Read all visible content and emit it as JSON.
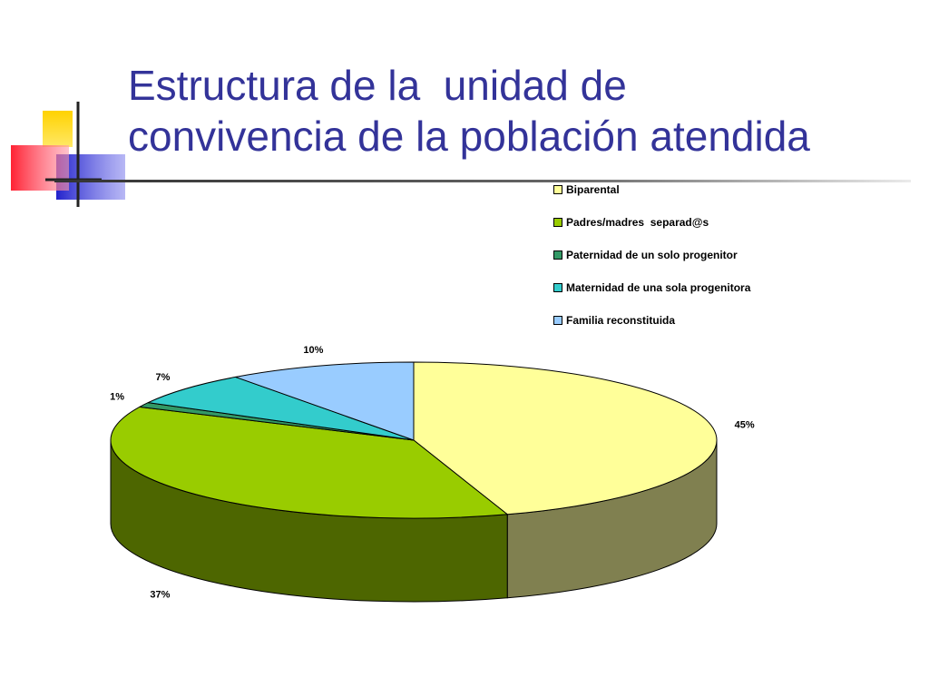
{
  "slide": {
    "title_lines": [
      "Estructura de la  unidad de",
      "convivencia de la población atendida"
    ]
  },
  "chart_data": {
    "type": "pie",
    "title": "Estructura de la  unidad de convivencia de la población atendida",
    "legend_position": "top-right",
    "slices": [
      {
        "label": "Biparental",
        "value": 45,
        "value_label": "45%",
        "color": "#FFFF99",
        "side_color": "#808050"
      },
      {
        "label": "Padres/madres  separad@s",
        "value": 37,
        "value_label": "37%",
        "color": "#99CC00",
        "side_color": "#4D6600"
      },
      {
        "label": "Paternidad de un solo progenitor",
        "value": 1,
        "value_label": "1%",
        "color": "#339966",
        "side_color": "#1A4D33"
      },
      {
        "label": "Maternidad de una sola progenitora",
        "value": 7,
        "value_label": "7%",
        "color": "#33CCCC",
        "side_color": "#1A6666"
      },
      {
        "label": "Familia reconstituida",
        "value": 10,
        "value_label": "10%",
        "color": "#99CCFF",
        "side_color": "#4D6680"
      }
    ]
  },
  "decor": {
    "colors": {
      "title": "#333399",
      "square_yellow": "#FFCC00",
      "square_red": "#FF3333",
      "square_blue": "#3333CC"
    }
  }
}
